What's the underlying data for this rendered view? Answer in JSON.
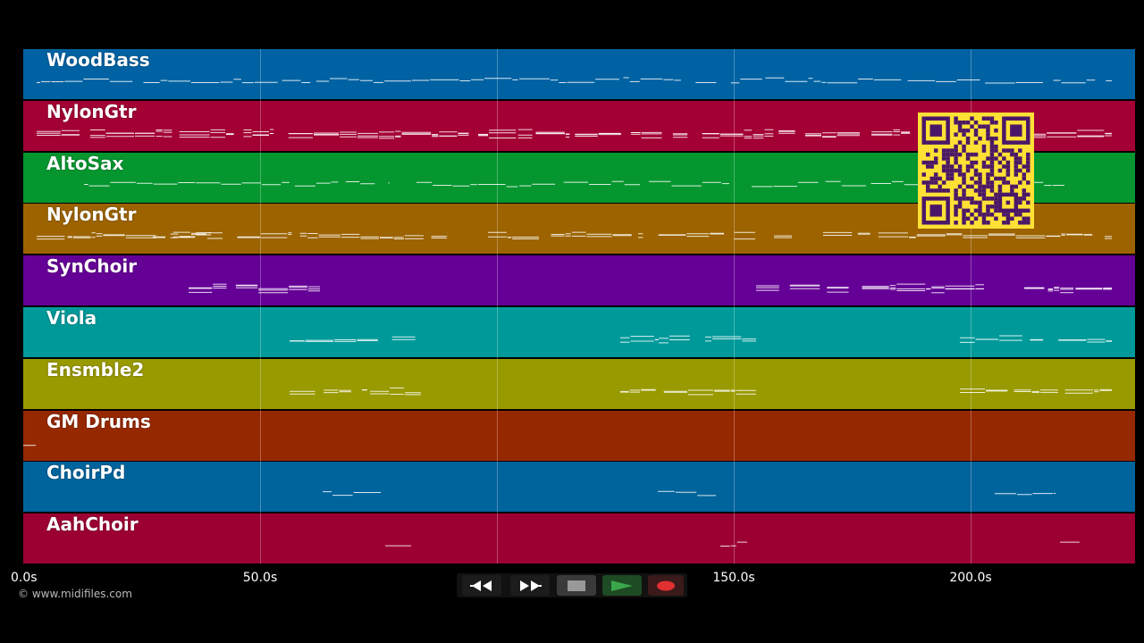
{
  "tracks": [
    {
      "label": "WoodBass",
      "color": "#0062a2"
    },
    {
      "label": "NylonGtr",
      "color": "#a30034"
    },
    {
      "label": "AltoSax",
      "color": "#05962f"
    },
    {
      "label": "NylonGtr",
      "color": "#9c6300"
    },
    {
      "label": "SynChoir",
      "color": "#650096"
    },
    {
      "label": "Viola",
      "color": "#009999"
    },
    {
      "label": "Ensmble2",
      "color": "#999900"
    },
    {
      "label": "GM Drums",
      "color": "#962800"
    },
    {
      "label": "ChoirPd",
      "color": "#00649c"
    },
    {
      "label": "AahChoir",
      "color": "#9c0032"
    }
  ],
  "timeline": {
    "ticks": [
      {
        "label": "0.0s",
        "seconds": 0
      },
      {
        "label": "50.0s",
        "seconds": 50
      },
      {
        "label": "150.0s",
        "seconds": 150
      },
      {
        "label": "200.0s",
        "seconds": 200
      }
    ],
    "max_seconds": 235
  },
  "copyright": "© www.midifiles.com",
  "transport": {
    "rewind_icon": "rewind-icon",
    "fast_forward_icon": "fast-forward-icon",
    "stop_icon": "stop-icon",
    "play_icon": "play-icon",
    "record_icon": "record-icon",
    "play_color": "#3aa64a",
    "record_color": "#e03030"
  },
  "overlay": {
    "qr_color": "#ffe135",
    "qr_dark": "#4a1768"
  }
}
